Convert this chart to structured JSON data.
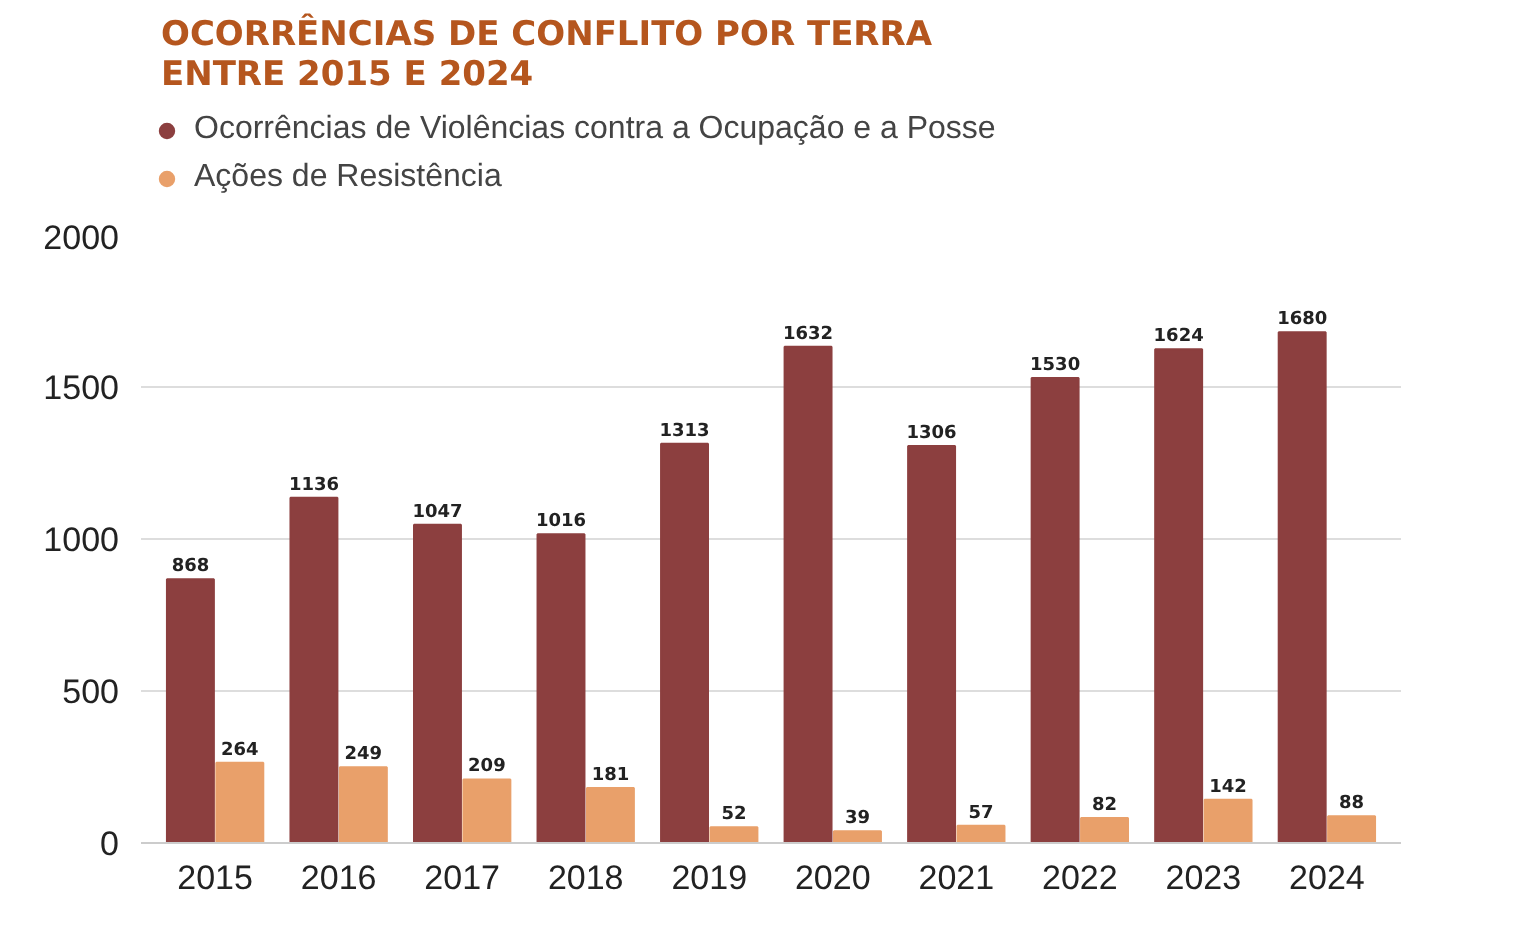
{
  "chart_data": {
    "type": "bar",
    "title": "OCORRÊNCIAS DE CONFLITO POR TERRA ENTRE 2015 E 2024",
    "categories": [
      "2015",
      "2016",
      "2017",
      "2018",
      "2019",
      "2020",
      "2021",
      "2022",
      "2023",
      "2024"
    ],
    "series": [
      {
        "name": "Ocorrências de Violências contra a Ocupação e a Posse",
        "color": "#8c3f3f",
        "values": [
          868,
          1136,
          1047,
          1016,
          1313,
          1632,
          1306,
          1530,
          1624,
          1680
        ]
      },
      {
        "name": "Ações de Resistência",
        "color": "#e9a06a",
        "values": [
          264,
          249,
          209,
          181,
          52,
          39,
          57,
          82,
          142,
          88
        ]
      }
    ],
    "ylim": [
      0,
      2000
    ],
    "yticks": [
      0,
      500,
      1000,
      1500,
      2000
    ],
    "grid": "y",
    "legend": "top left",
    "data_labels": true
  }
}
